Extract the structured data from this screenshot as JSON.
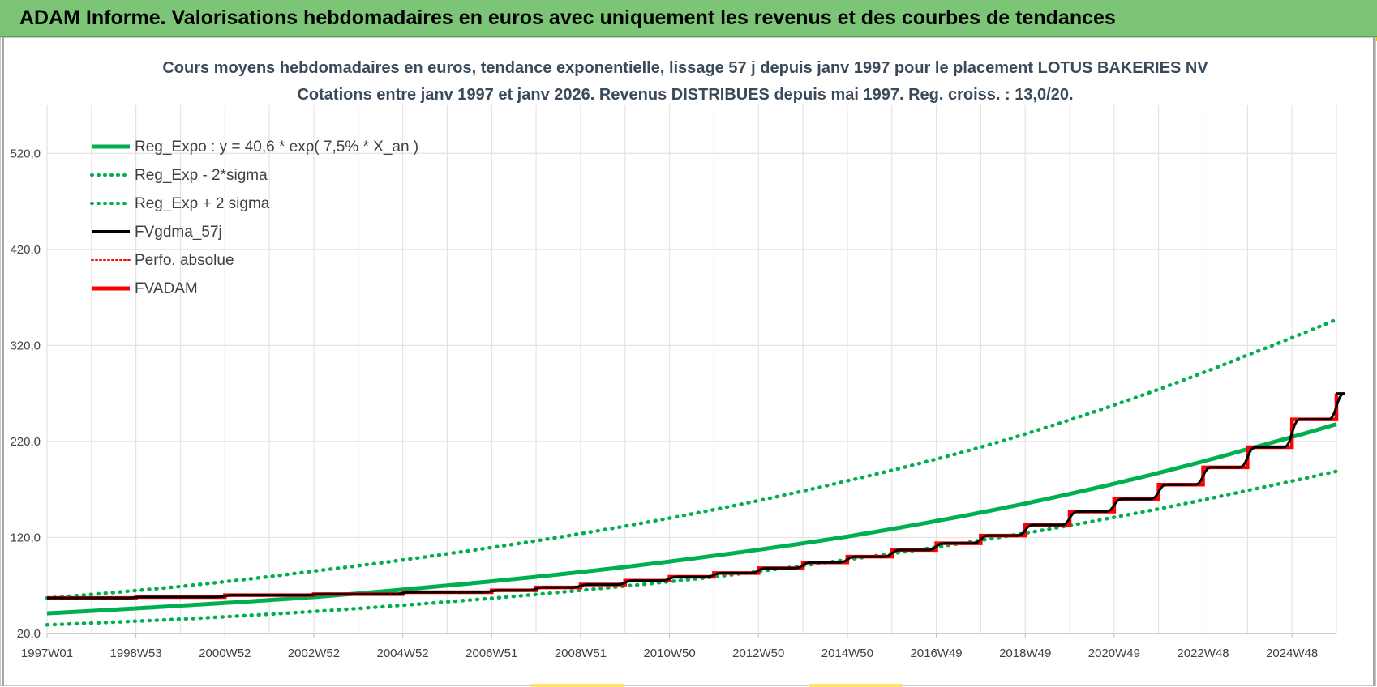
{
  "header": {
    "title": "ADAM Informe. Valorisations hebdomadaires en euros avec uniquement les revenus et des courbes de tendances"
  },
  "colors": {
    "banner": "#7cc576",
    "green": "#00b050",
    "red": "#ff0000",
    "black": "#000000",
    "grid": "#e3e3e3"
  },
  "chart_data": {
    "type": "line",
    "title": "Cours moyens hebdomadaires en euros, tendance exponentielle, lissage 57 j depuis janv 1997  pour le  placement LOTUS BAKERIES NV",
    "subtitle": "Cotations entre janv 1997 et janv 2026. Revenus DISTRIBUES depuis mai 1997.  Reg. croiss. : 13,0/20.",
    "xlabel": "",
    "ylabel": "",
    "x_ticks": [
      "1997W01",
      "1998W53",
      "2000W52",
      "2002W52",
      "2004W52",
      "2006W51",
      "2008W51",
      "2010W50",
      "2012W50",
      "2014W50",
      "2016W49",
      "2018W49",
      "2020W49",
      "2022W48",
      "2024W48"
    ],
    "x_range": [
      1997.0,
      2026.0
    ],
    "ylim": [
      20,
      570
    ],
    "y_ticks": [
      "20,0",
      "120,0",
      "220,0",
      "320,0",
      "420,0",
      "520,0"
    ],
    "grid": true,
    "legend_position": "top-left",
    "legend": [
      {
        "label": "Reg_Expo : y = 40,6 * exp( 7,5% *  X_an )",
        "color": "#00b050",
        "style": "solid",
        "width": 5
      },
      {
        "label": "Reg_Exp - 2*sigma",
        "color": "#00b050",
        "style": "dotted",
        "width": 4
      },
      {
        "label": "Reg_Exp + 2 sigma",
        "color": "#00b050",
        "style": "dotted",
        "width": 4
      },
      {
        "label": "FVgdma_57j",
        "color": "#000000",
        "style": "solid",
        "width": 4
      },
      {
        "label": "Perfo. absolue",
        "color": "#ff0000",
        "style": "dotted",
        "width": 2
      },
      {
        "label": "FVADAM",
        "color": "#ff0000",
        "style": "solid",
        "width": 5
      }
    ],
    "series": [
      {
        "name": "Reg_Expo : y = 40,6 * exp( 7,5% *  X_an )",
        "x": [
          1997,
          2000,
          2003,
          2006,
          2009,
          2012,
          2015,
          2018,
          2021,
          2024,
          2026
        ],
        "values": [
          41,
          49,
          58,
          70,
          84,
          101,
          121,
          146,
          176,
          212,
          238
        ]
      },
      {
        "name": "Reg_Exp - 2*sigma",
        "x": [
          1997,
          2000,
          2003,
          2006,
          2009,
          2012,
          2015,
          2018,
          2021,
          2024,
          2026
        ],
        "values": [
          29,
          35,
          43,
          53,
          65,
          79,
          97,
          117,
          141,
          169,
          189
        ]
      },
      {
        "name": "Reg_Exp + 2 sigma",
        "x": [
          1997,
          2000,
          2003,
          2006,
          2009,
          2012,
          2015,
          2018,
          2021,
          2024,
          2026
        ],
        "values": [
          57,
          69,
          85,
          103,
          124,
          149,
          179,
          214,
          258,
          310,
          347
        ]
      },
      {
        "name": "FVADAM",
        "x": [
          1997,
          1999,
          2001,
          2003,
          2005,
          2007,
          2008,
          2009,
          2010,
          2011,
          2012,
          2013,
          2014,
          2015,
          2016,
          2017,
          2018,
          2019,
          2020,
          2021,
          2022,
          2023,
          2024,
          2025,
          2026
        ],
        "values": [
          57,
          58,
          60,
          61,
          63,
          65,
          68,
          71,
          75,
          79,
          83,
          88,
          94,
          100,
          107,
          114,
          122,
          133,
          147,
          160,
          175,
          193,
          214,
          243,
          270
        ]
      }
    ]
  }
}
